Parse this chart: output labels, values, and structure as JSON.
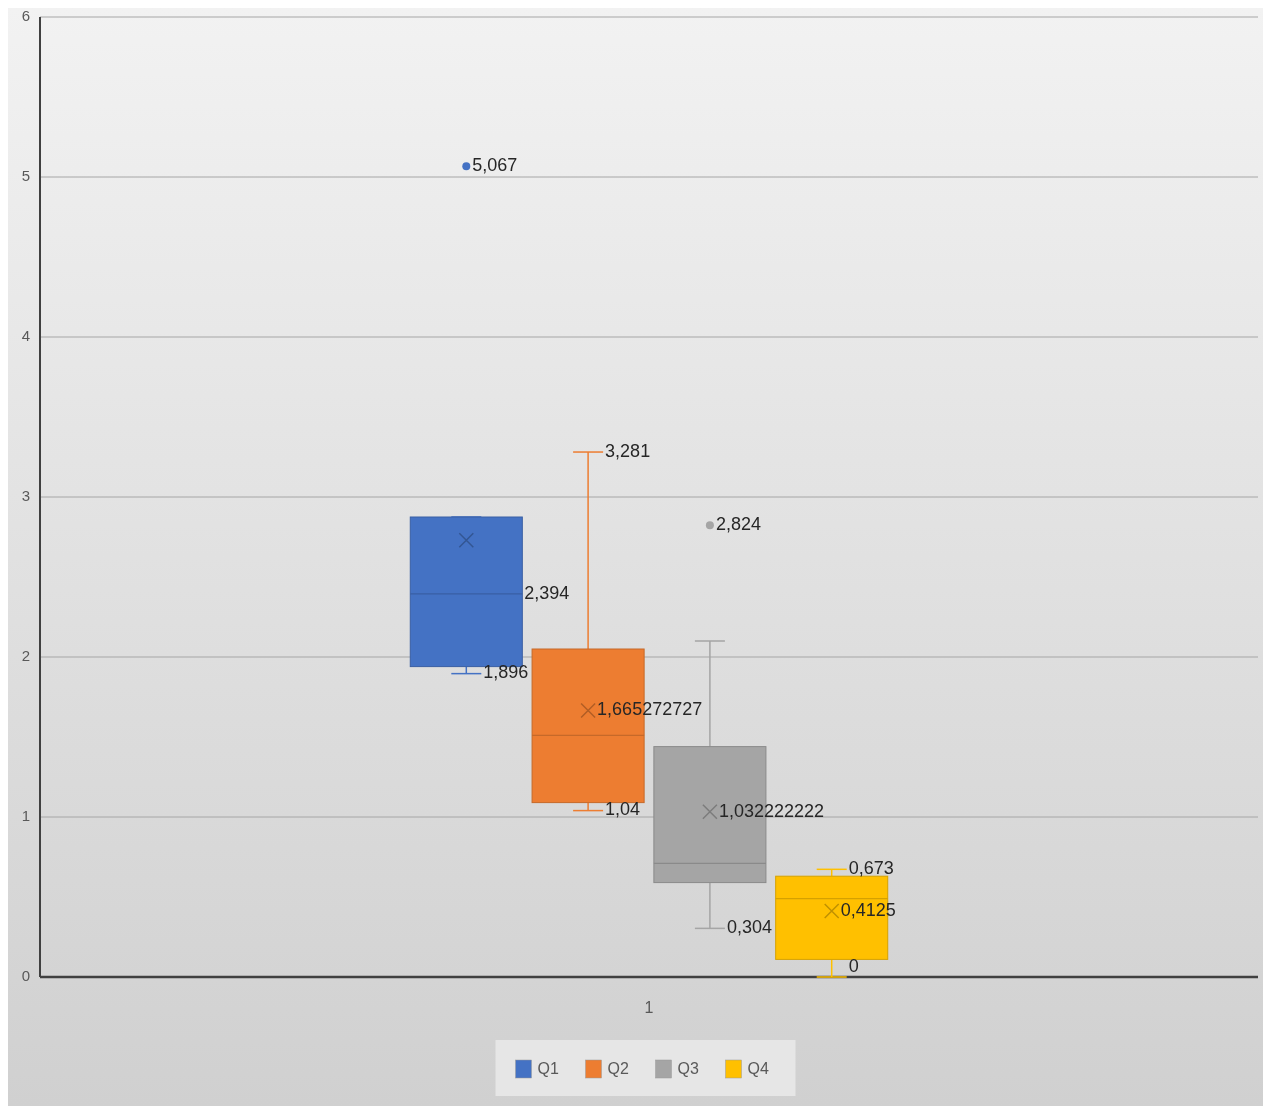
{
  "chart_data": {
    "type": "box",
    "categories": [
      "1"
    ],
    "series": [
      {
        "name": "Q1",
        "color": "#4472c4",
        "boxes": [
          {
            "low": 1.896,
            "q1": 1.94,
            "median": 2.394,
            "q3": 2.875,
            "high": 2.875,
            "mean": 2.73,
            "outliers": [
              5.067
            ]
          }
        ]
      },
      {
        "name": "Q2",
        "color": "#ed7d31",
        "boxes": [
          {
            "low": 1.04,
            "q1": 1.09,
            "median": 1.51,
            "q3": 2.05,
            "high": 3.281,
            "mean": 1.665272727
          }
        ]
      },
      {
        "name": "Q3",
        "color": "#a5a5a5",
        "boxes": [
          {
            "low": 0.304,
            "q1": 0.59,
            "median": 0.71,
            "q3": 1.44,
            "high": 2.1,
            "mean": 1.032222222,
            "outliers": [
              2.824
            ]
          }
        ]
      },
      {
        "name": "Q4",
        "color": "#ffc000",
        "boxes": [
          {
            "low": 0,
            "q1": 0.11,
            "median": 0.49,
            "q3": 0.63,
            "high": 0.673,
            "mean": 0.4125
          }
        ]
      }
    ],
    "annotations": [
      "5,067",
      "2,394",
      "1,896",
      "3,281",
      "1,665272727",
      "1,04",
      "2,824",
      "1,032222222",
      "0,304",
      "0,673",
      "0,4125",
      "0"
    ],
    "ylim": [
      0,
      6
    ],
    "yticks": [
      0,
      1,
      2,
      3,
      4,
      5,
      6
    ],
    "grid": "y",
    "legend": "bottom",
    "marker": "cross"
  }
}
